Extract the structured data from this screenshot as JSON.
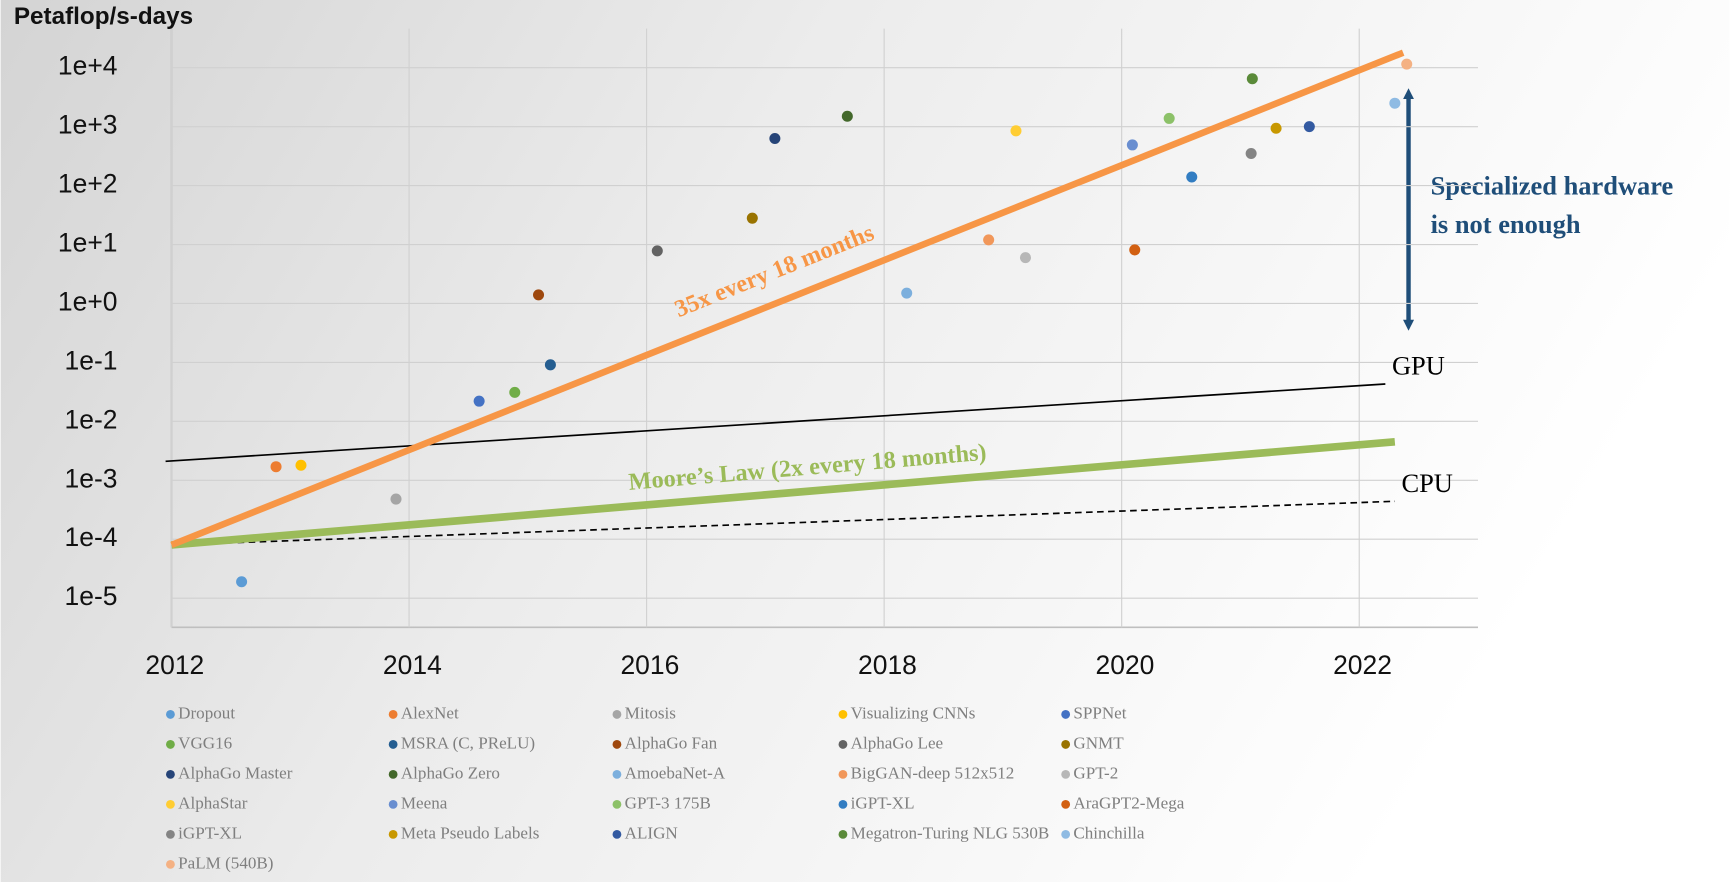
{
  "chart_data": {
    "type": "scatter",
    "y_axis_label": "Petaflop/s-days",
    "log_y": true,
    "grid": true,
    "xlim": [
      2012,
      2023
    ],
    "xticks": [
      2012,
      2014,
      2016,
      2018,
      2020,
      2022
    ],
    "ylim": [
      3.2e-06,
      46000
    ],
    "yticks": [
      {
        "value": 1e-05,
        "label": "1e-5"
      },
      {
        "value": 0.0001,
        "label": "1e-4"
      },
      {
        "value": 0.001,
        "label": "1e-3"
      },
      {
        "value": 0.01,
        "label": "1e-2"
      },
      {
        "value": 0.1,
        "label": "1e-1"
      },
      {
        "value": 1,
        "label": "1e+0"
      },
      {
        "value": 10,
        "label": "1e+1"
      },
      {
        "value": 100,
        "label": "1e+2"
      },
      {
        "value": 1000,
        "label": "1e+3"
      },
      {
        "value": 10000,
        "label": "1e+4"
      }
    ],
    "series": [
      {
        "name": "Dropout",
        "color": "#5b9bd5",
        "x": [
          2012.59
        ],
        "values": [
          1.9e-05
        ]
      },
      {
        "name": "AlexNet",
        "color": "#ed7d31",
        "x": [
          2012.88
        ],
        "values": [
          0.0017
        ]
      },
      {
        "name": "Mitosis",
        "color": "#a5a5a5",
        "x": [
          2013.89
        ],
        "values": [
          0.00048
        ]
      },
      {
        "name": "Visualizing CNNs",
        "color": "#ffc000",
        "x": [
          2013.09
        ],
        "values": [
          0.0018
        ]
      },
      {
        "name": "SPPNet",
        "color": "#4472c4",
        "x": [
          2014.59
        ],
        "values": [
          0.022
        ]
      },
      {
        "name": "VGG16",
        "color": "#70ad47",
        "x": [
          2014.89
        ],
        "values": [
          0.031
        ]
      },
      {
        "name": "MSRA (C, PReLU)",
        "color": "#255e91",
        "x": [
          2015.19
        ],
        "values": [
          0.091
        ]
      },
      {
        "name": "AlphaGo Fan",
        "color": "#9e480e",
        "x": [
          2015.09
        ],
        "values": [
          1.4
        ]
      },
      {
        "name": "AlphaGo Lee",
        "color": "#636363",
        "x": [
          2016.09
        ],
        "values": [
          7.8
        ]
      },
      {
        "name": "GNMT",
        "color": "#997300",
        "x": [
          2016.89
        ],
        "values": [
          28
        ]
      },
      {
        "name": "AlphaGo Master",
        "color": "#264478",
        "x": [
          2017.08
        ],
        "values": [
          630
        ]
      },
      {
        "name": "AlphaGo Zero",
        "color": "#43682b",
        "x": [
          2017.69
        ],
        "values": [
          1500
        ]
      },
      {
        "name": "AmoebaNet-A",
        "color": "#7cafdd",
        "x": [
          2018.19
        ],
        "values": [
          1.5
        ]
      },
      {
        "name": "BigGAN-deep 512x512",
        "color": "#f1975a",
        "x": [
          2018.88
        ],
        "values": [
          12
        ]
      },
      {
        "name": "GPT-2",
        "color": "#b7b7b7",
        "x": [
          2019.19
        ],
        "values": [
          6
        ]
      },
      {
        "name": "AlphaStar",
        "color": "#ffcd33",
        "x": [
          2019.11
        ],
        "values": [
          850
        ]
      },
      {
        "name": "Meena",
        "color": "#698ed0",
        "x": [
          2020.09
        ],
        "values": [
          490
        ]
      },
      {
        "name": "GPT-3 175B",
        "color": "#8cc168",
        "x": [
          2020.4
        ],
        "values": [
          1380
        ]
      },
      {
        "name": "iGPT-XL",
        "color": "#327dc2",
        "x": [
          2020.59
        ],
        "values": [
          140
        ]
      },
      {
        "name": "AraGPT2-Mega",
        "color": "#d26012",
        "x": [
          2020.11
        ],
        "values": [
          8.1
        ]
      },
      {
        "name": "iGPT-XL",
        "color": "#848484",
        "x": [
          2021.09
        ],
        "values": [
          350
        ]
      },
      {
        "name": "Meta Pseudo Labels",
        "color": "#c89800",
        "x": [
          2021.3
        ],
        "values": [
          940
        ]
      },
      {
        "name": "ALIGN",
        "color": "#335aa1",
        "x": [
          2021.58
        ],
        "values": [
          1000
        ]
      },
      {
        "name": "Megatron-Turing NLG 530B",
        "color": "#5a8a39",
        "x": [
          2021.1
        ],
        "values": [
          6500
        ]
      },
      {
        "name": "Chinchilla",
        "color": "#8fbbe3",
        "x": [
          2022.3
        ],
        "values": [
          2500
        ]
      },
      {
        "name": "PaLM (540B)",
        "color": "#f4b183",
        "x": [
          2022.4
        ],
        "values": [
          11500
        ]
      }
    ],
    "trend_lines": [
      {
        "label": "GPU",
        "color": "#000000",
        "width": 1.5,
        "dashed": false,
        "x": [
          2011.95,
          2022.22
        ],
        "values": [
          0.0021,
          0.043
        ]
      },
      {
        "label": "CPU",
        "color": "#000000",
        "width": 1.5,
        "dashed": true,
        "x": [
          2012,
          2022.3
        ],
        "values": [
          8e-05,
          0.00044
        ]
      },
      {
        "label": "Moore’s Law (2x every 18 months)",
        "color": "#9bbb59",
        "width": 7,
        "dashed": false,
        "x": [
          2012,
          2022.3
        ],
        "values": [
          8e-05,
          0.0045
        ]
      },
      {
        "label": "35x every 18 months",
        "color": "#f79646",
        "width": 6,
        "dashed": false,
        "x": [
          2012,
          2022.37
        ],
        "values": [
          8e-05,
          18000
        ]
      }
    ],
    "annotation": "Specialized hardware is not enough"
  }
}
